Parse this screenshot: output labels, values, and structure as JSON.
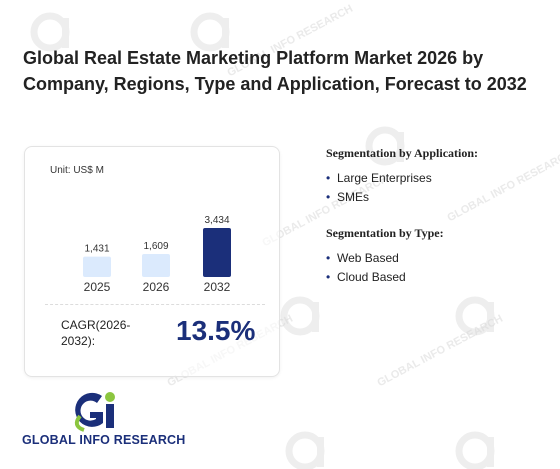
{
  "title": "Global Real Estate Marketing Platform Market 2026 by Company, Regions, Type and Application, Forecast to 2032",
  "card": {
    "unit": "Unit: US$ M",
    "cagr_label": "CAGR(2026-2032):",
    "cagr_value": "13.5%"
  },
  "chart_data": {
    "type": "bar",
    "categories": [
      "2025",
      "2026",
      "2032"
    ],
    "values": [
      1431,
      1609,
      3434
    ],
    "value_labels": [
      "1,431",
      "1,609",
      "3,434"
    ],
    "colors": [
      "#dbeafd",
      "#dbeafd",
      "#1b2f7a"
    ],
    "title": "",
    "xlabel": "",
    "ylabel": "",
    "ylim": [
      0,
      3434
    ]
  },
  "segmentation": {
    "application": {
      "heading": "Segmentation by Application:",
      "items": [
        "Large Enterprises",
        "SMEs"
      ]
    },
    "type": {
      "heading": "Segmentation by Type:",
      "items": [
        "Web Based",
        "Cloud Based"
      ]
    }
  },
  "logo": {
    "text": "GLOBAL INFO RESEARCH",
    "watermark": "GLOBAL INFO RESEARCH",
    "colors": {
      "navy": "#1b2f7a",
      "green": "#8cc63f"
    }
  }
}
